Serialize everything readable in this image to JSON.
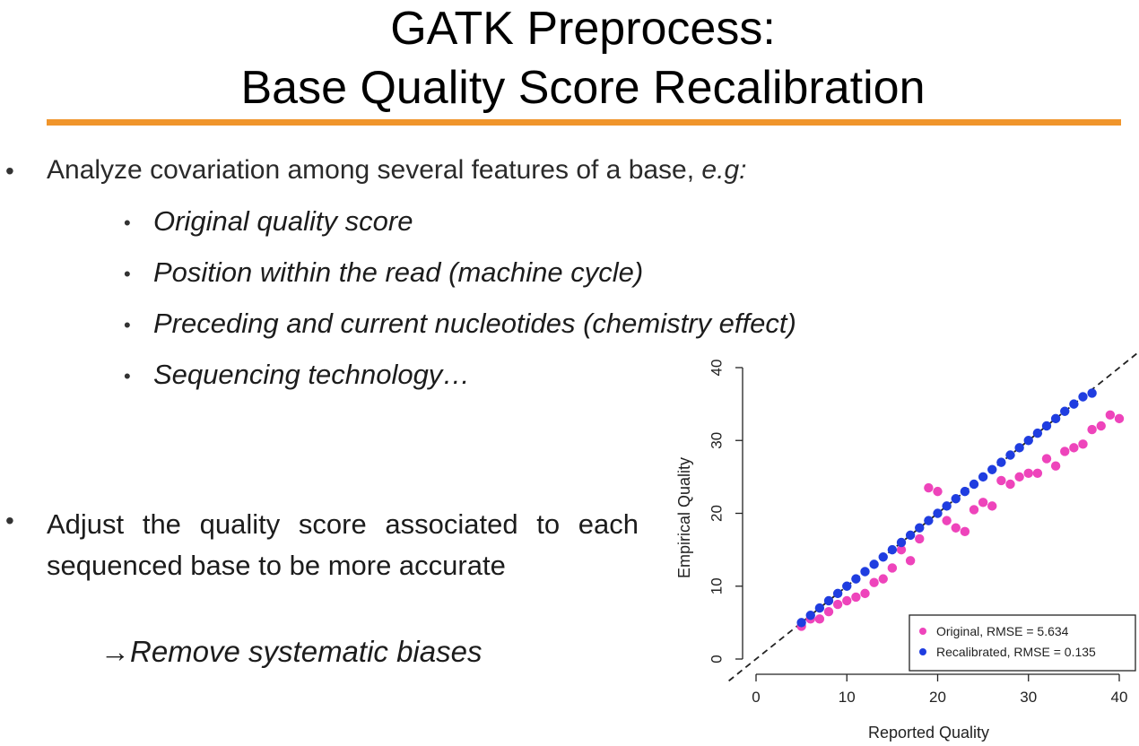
{
  "slide": {
    "title_line1": "GATK Preprocess:",
    "title_line2": "Base Quality Score Recalibration",
    "accent_color": "#f0952b",
    "bullet1": {
      "lead": "Analyze covariation among several features of a base, ",
      "lead_em": "e.g:",
      "items": [
        "Original quality score",
        "Position within the read (machine cycle)",
        "Preceding and current nucleotides (chemistry effect)",
        "Sequencing technology…"
      ]
    },
    "bullet2": {
      "text": "Adjust the quality score associated to each sequenced base to be more accurate",
      "arrow": "→",
      "result": "Remove systematic biases"
    },
    "bullet_symbol": "•"
  },
  "chart_data": {
    "type": "scatter",
    "title": "",
    "xlabel": "Reported Quality",
    "ylabel": "Empirical Quality",
    "xlim": [
      0,
      40
    ],
    "ylim": [
      0,
      40
    ],
    "xticks": [
      0,
      10,
      20,
      30,
      40
    ],
    "yticks": [
      0,
      10,
      20,
      30,
      40
    ],
    "reference_line": "y = x (dashed)",
    "grid": false,
    "legend_position": "bottom-right",
    "series": [
      {
        "name": "Original, RMSE = 5.634",
        "color": "#ee44bb",
        "points": [
          [
            5,
            4.5
          ],
          [
            6,
            5.5
          ],
          [
            7,
            5.5
          ],
          [
            8,
            6.5
          ],
          [
            9,
            7.5
          ],
          [
            10,
            8
          ],
          [
            11,
            8.5
          ],
          [
            12,
            9
          ],
          [
            13,
            10.5
          ],
          [
            14,
            11
          ],
          [
            15,
            12.5
          ],
          [
            16,
            15
          ],
          [
            17,
            13.5
          ],
          [
            18,
            16.5
          ],
          [
            19,
            23.5
          ],
          [
            20,
            23
          ],
          [
            21,
            19
          ],
          [
            22,
            18
          ],
          [
            23,
            17.5
          ],
          [
            24,
            20.5
          ],
          [
            25,
            21.5
          ],
          [
            26,
            21
          ],
          [
            27,
            24.5
          ],
          [
            28,
            24
          ],
          [
            29,
            25
          ],
          [
            30,
            25.5
          ],
          [
            31,
            25.5
          ],
          [
            32,
            27.5
          ],
          [
            33,
            26.5
          ],
          [
            34,
            28.5
          ],
          [
            35,
            29
          ],
          [
            36,
            29.5
          ],
          [
            37,
            31.5
          ],
          [
            38,
            32
          ],
          [
            39,
            33.5
          ],
          [
            40,
            33
          ]
        ]
      },
      {
        "name": "Recalibrated, RMSE = 0.135",
        "color": "#1f3de0",
        "points": [
          [
            5,
            5
          ],
          [
            6,
            6
          ],
          [
            7,
            7
          ],
          [
            8,
            8
          ],
          [
            9,
            9
          ],
          [
            10,
            10
          ],
          [
            11,
            11
          ],
          [
            12,
            12
          ],
          [
            13,
            13
          ],
          [
            14,
            14
          ],
          [
            15,
            15
          ],
          [
            16,
            16
          ],
          [
            17,
            17
          ],
          [
            18,
            18
          ],
          [
            19,
            19
          ],
          [
            20,
            20
          ],
          [
            21,
            21
          ],
          [
            22,
            22
          ],
          [
            23,
            23
          ],
          [
            24,
            24
          ],
          [
            25,
            25
          ],
          [
            26,
            26
          ],
          [
            27,
            27
          ],
          [
            28,
            28
          ],
          [
            29,
            29
          ],
          [
            30,
            30
          ],
          [
            31,
            31
          ],
          [
            32,
            32
          ],
          [
            33,
            33
          ],
          [
            34,
            34
          ],
          [
            35,
            35
          ],
          [
            36,
            36
          ],
          [
            37,
            36.5
          ]
        ]
      }
    ]
  }
}
